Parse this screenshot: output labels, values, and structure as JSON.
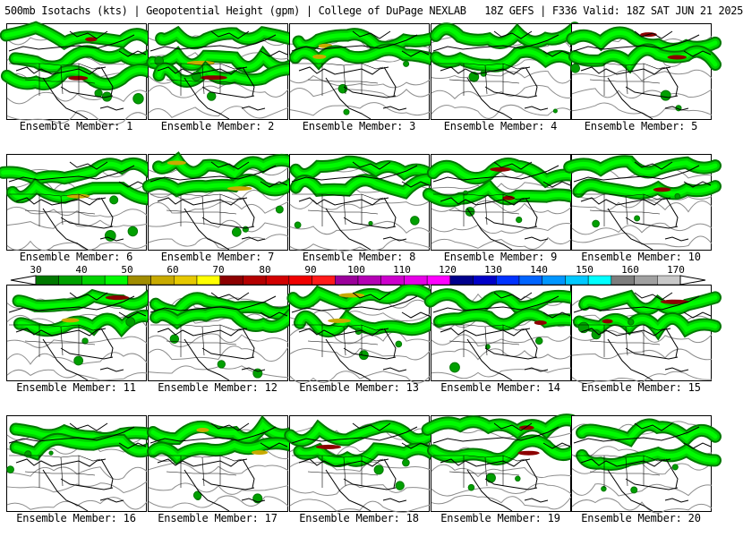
{
  "title": "500mb Isotachs (kts) | Geopotential Height (gpm) | College of DuPage NEXLAB   18Z GEFS | F336 Valid: 18Z SAT JUN 21 2025",
  "members": [
    "Ensemble Member: 1",
    "Ensemble Member: 2",
    "Ensemble Member: 3",
    "Ensemble Member: 4",
    "Ensemble Member: 5",
    "Ensemble Member: 6",
    "Ensemble Member: 7",
    "Ensemble Member: 8",
    "Ensemble Member: 9",
    "Ensemble Member: 10",
    "Ensemble Member: 11",
    "Ensemble Member: 12",
    "Ensemble Member: 13",
    "Ensemble Member: 14",
    "Ensemble Member: 15",
    "Ensemble Member: 16",
    "Ensemble Member: 17",
    "Ensemble Member: 18",
    "Ensemble Member: 19",
    "Ensemble Member: 20"
  ],
  "scale": {
    "labels": [
      "30",
      "40",
      "50",
      "60",
      "70",
      "80",
      "90",
      "100",
      "110",
      "120",
      "130",
      "140",
      "150",
      "160",
      "170"
    ],
    "colors": [
      "#007800",
      "#00a000",
      "#00d200",
      "#00fa00",
      "#a08c00",
      "#c8aa00",
      "#e6c800",
      "#ffff00",
      "#8c0000",
      "#b40000",
      "#d20000",
      "#f00000",
      "#ff1a1a",
      "#9b009b",
      "#b400b4",
      "#cd00cd",
      "#e600e6",
      "#ff00ff",
      "#00008c",
      "#0000c8",
      "#0032ff",
      "#0064ff",
      "#0096ff",
      "#00c8ff",
      "#00ffff",
      "#7d7d7d",
      "#a0a0a0",
      "#c8c8c8"
    ]
  },
  "colors": {
    "height_contour": "#8c8c8c",
    "map_lines": "#000000",
    "panel_border": "#000000"
  }
}
